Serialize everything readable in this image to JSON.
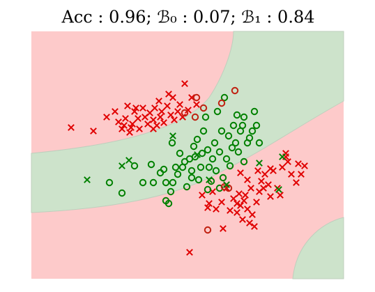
{
  "chart_data": {
    "type": "scatter",
    "title": "Acc : 0.96; ℬ₀ : 0.07; ℬ₁ : 0.84",
    "xlim": [
      45,
      493
    ],
    "ylim": [
      400,
      45
    ],
    "series": [
      {
        "marker": "x",
        "color": "#e00000",
        "x": [
          102,
          134,
          153,
          165,
          170,
          175,
          180,
          183,
          186,
          190,
          193,
          198,
          200,
          205,
          208,
          212,
          215,
          220,
          222,
          225,
          230,
          232,
          235,
          240,
          242,
          245,
          250,
          255,
          258,
          262,
          265,
          270,
          275,
          282,
          188,
          195,
          248,
          220,
          178,
          228,
          272,
          290,
          300,
          305,
          310,
          320,
          318,
          325,
          330,
          335,
          340,
          343,
          345,
          348,
          350,
          355,
          358,
          360,
          362,
          365,
          368,
          372,
          375,
          378,
          380,
          385,
          388,
          392,
          398,
          402,
          405,
          410,
          413,
          418,
          425,
          428,
          432,
          437,
          388,
          345,
          355,
          370,
          340,
          298,
          352,
          410
        ],
        "y": [
          183,
          188,
          168,
          160,
          175,
          185,
          170,
          152,
          190,
          178,
          160,
          170,
          185,
          155,
          168,
          178,
          162,
          172,
          155,
          180,
          168,
          160,
          176,
          152,
          135,
          165,
          172,
          160,
          150,
          168,
          120,
          158,
          140,
          150,
          183,
          155,
          140,
          185,
          180,
          145,
          362,
          280,
          292,
          275,
          300,
          328,
          290,
          270,
          302,
          285,
          292,
          278,
          295,
          315,
          288,
          300,
          320,
          270,
          308,
          325,
          290,
          275,
          260,
          270,
          250,
          265,
          282,
          245,
          270,
          280,
          240,
          225,
          232,
          250,
          262,
          235,
          250,
          238,
          242,
          248,
          258,
          245,
          305,
          298,
          280,
          220
        ]
      },
      {
        "marker": "o",
        "color": "#008000",
        "x": [
          157,
          175,
          193,
          205,
          217,
          220,
          230,
          235,
          238,
          242,
          245,
          248,
          252,
          255,
          258,
          262,
          265,
          268,
          272,
          275,
          278,
          280,
          283,
          285,
          288,
          290,
          292,
          295,
          298,
          300,
          303,
          305,
          308,
          310,
          312,
          315,
          318,
          320,
          322,
          325,
          328,
          330,
          333,
          335,
          338,
          340,
          342,
          345,
          348,
          350,
          355,
          358,
          362,
          365,
          368,
          372,
          350,
          275,
          298,
          315,
          238,
          247
        ],
        "y": [
          262,
          277,
          238,
          262,
          236,
          262,
          248,
          243,
          262,
          292,
          275,
          262,
          240,
          250,
          220,
          240,
          232,
          268,
          228,
          245,
          210,
          225,
          200,
          258,
          240,
          220,
          188,
          168,
          215,
          240,
          260,
          228,
          205,
          245,
          160,
          218,
          188,
          255,
          140,
          228,
          195,
          238,
          212,
          180,
          205,
          165,
          218,
          188,
          180,
          168,
          205,
          198,
          188,
          160,
          180,
          205,
          232,
          255,
          272,
          270,
          288,
          205
        ]
      },
      {
        "marker": "o",
        "color": "#c02010",
        "x": [
          282,
          292,
          318,
          337,
          322,
          328,
          298,
          280,
          265
        ],
        "y": [
          140,
          155,
          148,
          130,
          268,
          270,
          330,
          168,
          162
        ]
      },
      {
        "marker": "x",
        "color": "#008000",
        "x": [
          125,
          175,
          185,
          248,
          283,
          325,
          372,
          400,
          405,
          300
        ],
        "y": [
          258,
          238,
          230,
          195,
          222,
          265,
          234,
          272,
          225,
          258
        ]
      }
    ]
  }
}
